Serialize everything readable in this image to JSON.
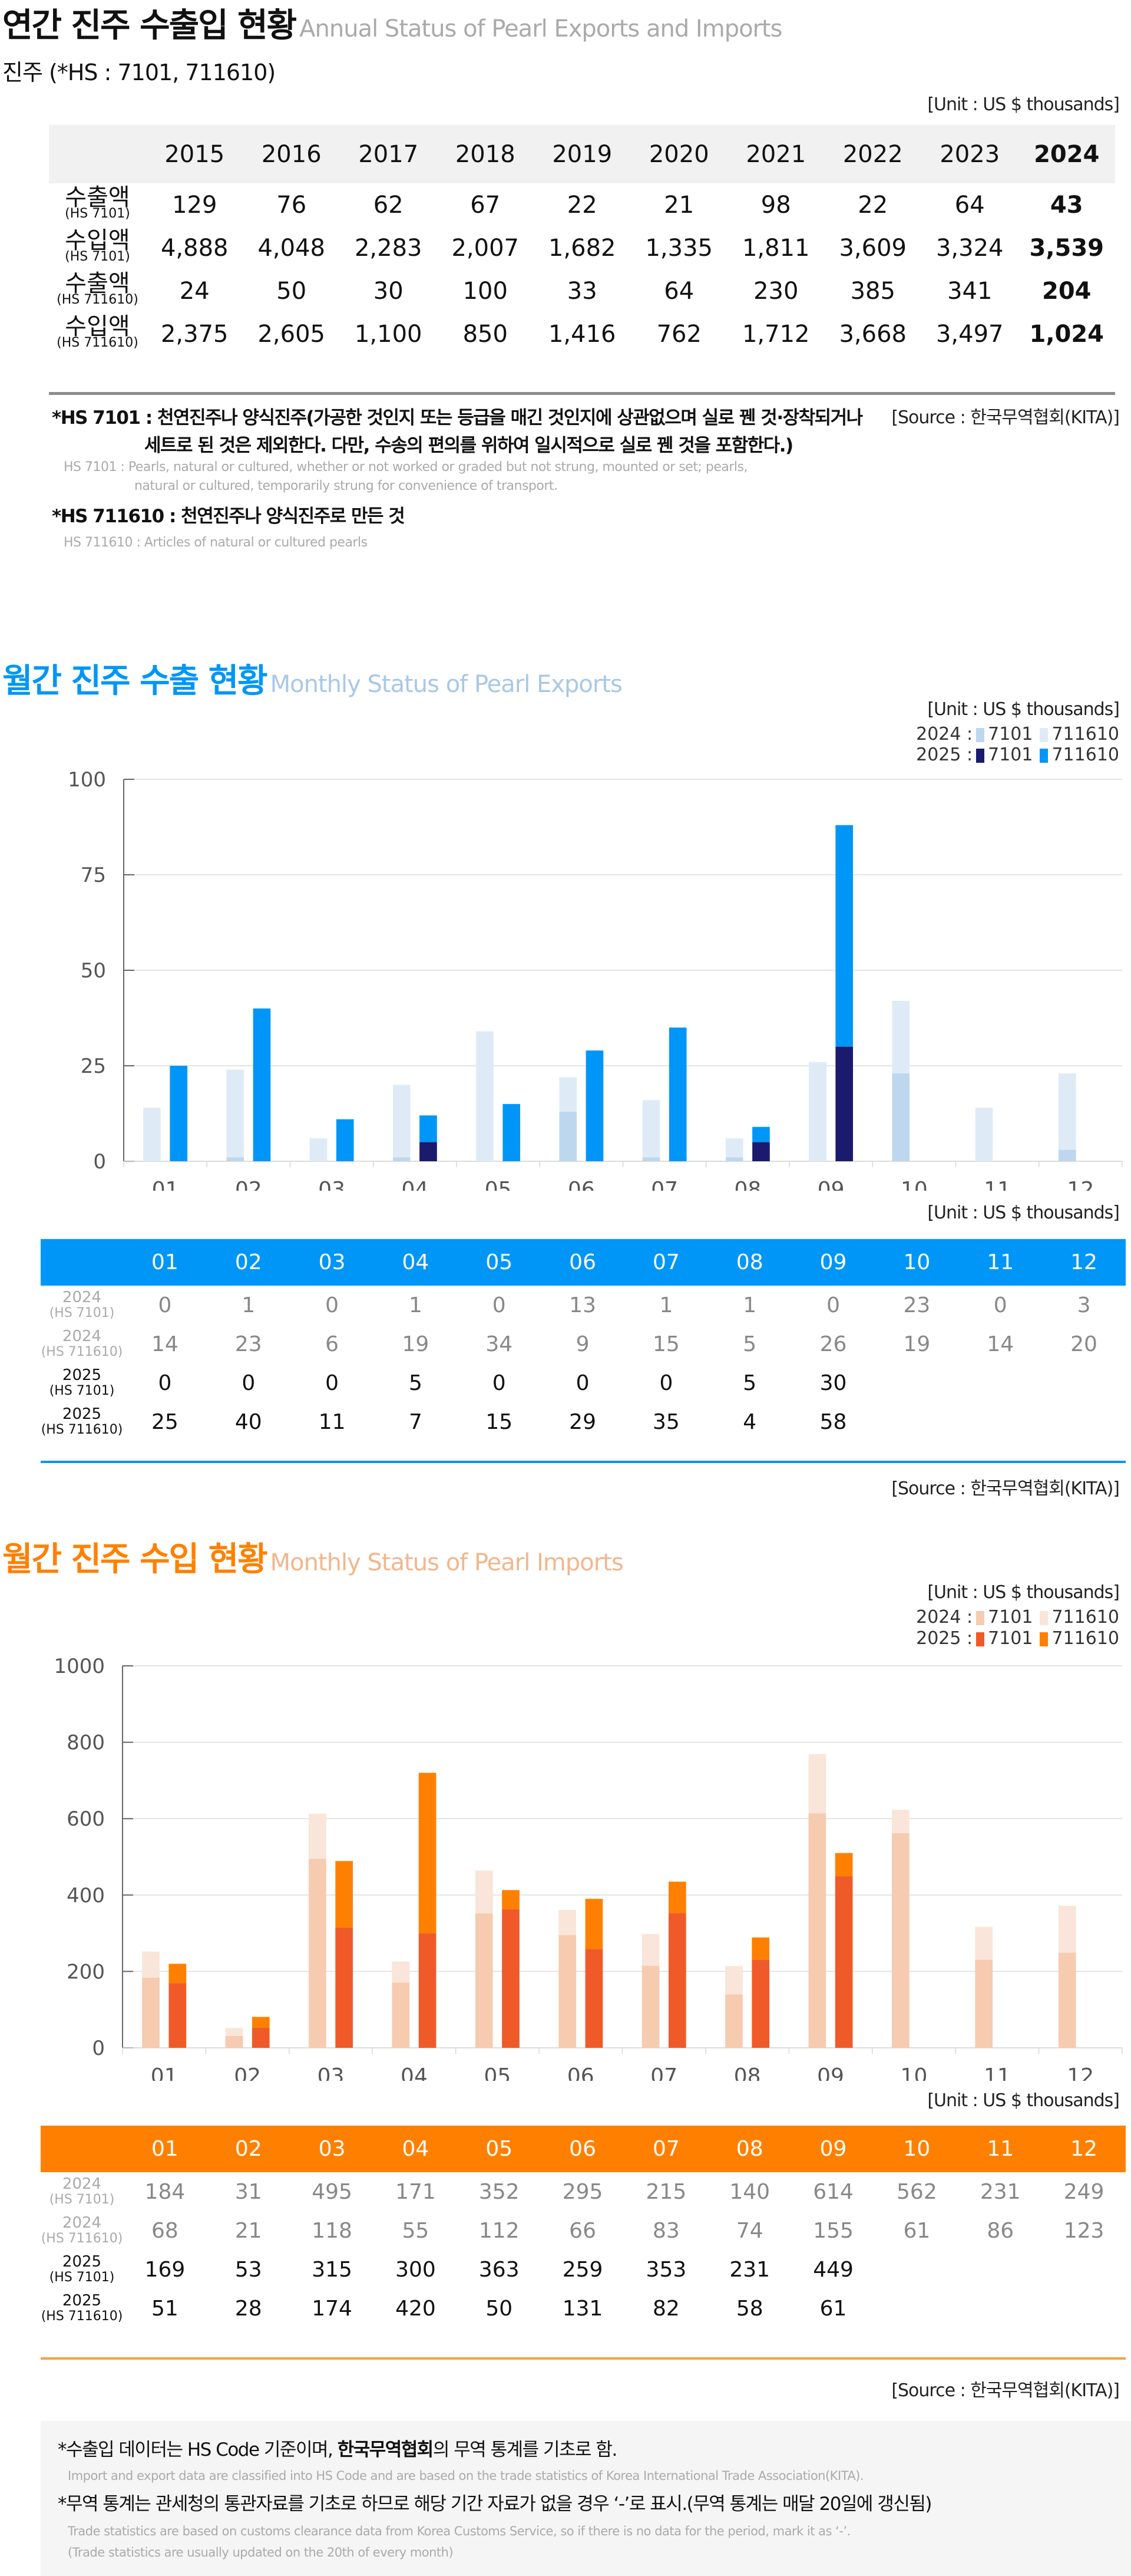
{
  "annual": {
    "title_ko": "연간 진주 수출입 현황",
    "title_en": "Annual Status of Pearl Exports and Imports",
    "subtitle": "진주 (*HS : 7101, 711610)",
    "unit": "[Unit : US $ thousands]",
    "years": [
      "2015",
      "2016",
      "2017",
      "2018",
      "2019",
      "2020",
      "2021",
      "2022",
      "2023",
      "2024"
    ],
    "rows": [
      {
        "label": "수출액",
        "code": "(HS 7101)",
        "values": [
          "129",
          "76",
          "62",
          "67",
          "22",
          "21",
          "98",
          "22",
          "64",
          "43"
        ]
      },
      {
        "label": "수입액",
        "code": "(HS 7101)",
        "values": [
          "4,888",
          "4,048",
          "2,283",
          "2,007",
          "1,682",
          "1,335",
          "1,811",
          "3,609",
          "3,324",
          "3,539"
        ]
      },
      {
        "label": "수출액",
        "code": "(HS 711610)",
        "values": [
          "24",
          "50",
          "30",
          "100",
          "33",
          "64",
          "230",
          "385",
          "341",
          "204"
        ]
      },
      {
        "label": "수입액",
        "code": "(HS 711610)",
        "values": [
          "2,375",
          "2,605",
          "1,100",
          "850",
          "1,416",
          "762",
          "1,712",
          "3,668",
          "3,497",
          "1,024"
        ]
      }
    ],
    "source": "[Source : 한국무역협회(KITA)]",
    "notes": {
      "hs7101_ko_line1": "*HS 7101 : 천연진주나 양식진주(가공한 것인지 또는 등급을 매긴 것인지에 상관없으며 실로 꿴 것·장착되거나",
      "hs7101_ko_line2": "세트로 된 것은 제외한다. 다만, 수송의 편의를 위하여 일시적으로 실로 꿴 것을 포함한다.)",
      "hs7101_en_line1": "HS 7101 : Pearls, natural or cultured, whether or not worked or graded but not strung, mounted or set; pearls,",
      "hs7101_en_line2": "natural or cultured, temporarily strung for convenience of transport.",
      "hs711610_ko": "*HS 711610 : 천연진주나 양식진주로 만든 것",
      "hs711610_en": "HS 711610 : Articles of natural or cultured pearls"
    }
  },
  "exports": {
    "title_ko": "월간 진주 수출 현황",
    "title_en": "Monthly Status of Pearl Exports",
    "unit": "[Unit : US $ thousands]",
    "legend": {
      "y2024": "2024 :",
      "y2025": "2025 :",
      "c7101": "7101",
      "c711610": "711610"
    },
    "colors": {
      "y2024_7101": "#bdd7ee",
      "y2024_711610": "#deebf7",
      "y2025_7101": "#1a1a6e",
      "y2025_711610": "#0096f7",
      "header": "#0096f7",
      "rule": "#0096f7"
    },
    "table_rows": [
      {
        "year": "2024",
        "code": "(HS 7101)",
        "values": [
          "0",
          "1",
          "0",
          "1",
          "0",
          "13",
          "1",
          "1",
          "0",
          "23",
          "0",
          "3"
        ]
      },
      {
        "year": "2024",
        "code": "(HS 711610)",
        "values": [
          "14",
          "23",
          "6",
          "19",
          "34",
          "9",
          "15",
          "5",
          "26",
          "19",
          "14",
          "20"
        ]
      },
      {
        "year": "2025",
        "code": "(HS 7101)",
        "values": [
          "0",
          "0",
          "0",
          "5",
          "0",
          "0",
          "0",
          "5",
          "30",
          "",
          "",
          ""
        ]
      },
      {
        "year": "2025",
        "code": "(HS 711610)",
        "values": [
          "25",
          "40",
          "11",
          "7",
          "15",
          "29",
          "35",
          "4",
          "58",
          "",
          "",
          ""
        ]
      }
    ],
    "source": "[Source : 한국무역협회(KITA)]"
  },
  "imports": {
    "title_ko": "월간 진주 수입 현황",
    "title_en": "Monthly Status of Pearl Imports",
    "unit": "[Unit : US $ thousands]",
    "legend": {
      "y2024": "2024 :",
      "y2025": "2025 :",
      "c7101": "7101",
      "c711610": "711610"
    },
    "colors": {
      "y2024_7101": "#f6cbb0",
      "y2024_711610": "#f9e5d9",
      "y2025_7101": "#f05a28",
      "y2025_711610": "#ff8000",
      "header": "#ff8000",
      "rule": "#f2a33a"
    },
    "table_rows": [
      {
        "year": "2024",
        "code": "(HS 7101)",
        "values": [
          "184",
          "31",
          "495",
          "171",
          "352",
          "295",
          "215",
          "140",
          "614",
          "562",
          "231",
          "249"
        ]
      },
      {
        "year": "2024",
        "code": "(HS 711610)",
        "values": [
          "68",
          "21",
          "118",
          "55",
          "112",
          "66",
          "83",
          "74",
          "155",
          "61",
          "86",
          "123"
        ]
      },
      {
        "year": "2025",
        "code": "(HS 7101)",
        "values": [
          "169",
          "53",
          "315",
          "300",
          "363",
          "259",
          "353",
          "231",
          "449",
          "",
          "",
          ""
        ]
      },
      {
        "year": "2025",
        "code": "(HS 711610)",
        "values": [
          "51",
          "28",
          "174",
          "420",
          "50",
          "131",
          "82",
          "58",
          "61",
          "",
          "",
          ""
        ]
      }
    ],
    "source": "[Source : 한국무역협회(KITA)]"
  },
  "months": [
    "01",
    "02",
    "03",
    "04",
    "05",
    "06",
    "07",
    "08",
    "09",
    "10",
    "11",
    "12"
  ],
  "footer": {
    "note1_ko_pre": "*수출입 데이터는 HS Code 기준이며, ",
    "note1_ko_bold": "한국무역협회",
    "note1_ko_post": "의 무역 통계를 기초로 함.",
    "note1_en": "Import and export data are classified into HS Code and are based on the trade statistics of Korea International  Trade Association(KITA).",
    "note2_ko": "*무역 통계는 관세청의  통관자료를 기초로 하므로 해당 기간 자료가 없을 경우 ‘-’로 표시.(무역 통계는 매달 20일에 갱신됨)",
    "note2_en_line1": "Trade statistics are based on customs clearance data from Korea Customs Service, so if there is no data for the period, mark it as ‘-’.",
    "note2_en_line2": "(Trade statistics are usually updated on the 20th of every month)"
  },
  "chart_data": [
    {
      "type": "bar",
      "title": "월간 진주 수출 현황 Monthly Status of Pearl Exports",
      "xlabel": "",
      "ylabel": "US $ thousands",
      "categories": [
        "01",
        "02",
        "03",
        "04",
        "05",
        "06",
        "07",
        "08",
        "09",
        "10",
        "11",
        "12"
      ],
      "ylim": [
        0,
        100
      ],
      "yticks": [
        0,
        25,
        50,
        75,
        100
      ],
      "grid": true,
      "legend_position": "top-right",
      "stacked_groups": [
        "2024",
        "2025"
      ],
      "series": [
        {
          "name": "2024 7101",
          "group": "2024",
          "values": [
            0,
            1,
            0,
            1,
            0,
            13,
            1,
            1,
            0,
            23,
            0,
            3
          ]
        },
        {
          "name": "2024 711610",
          "group": "2024",
          "values": [
            14,
            23,
            6,
            19,
            34,
            9,
            15,
            5,
            26,
            19,
            14,
            20
          ]
        },
        {
          "name": "2025 7101",
          "group": "2025",
          "values": [
            0,
            0,
            0,
            5,
            0,
            0,
            0,
            5,
            30,
            null,
            null,
            null
          ]
        },
        {
          "name": "2025 711610",
          "group": "2025",
          "values": [
            25,
            40,
            11,
            7,
            15,
            29,
            35,
            4,
            58,
            null,
            null,
            null
          ]
        }
      ]
    },
    {
      "type": "bar",
      "title": "월간 진주 수입 현황 Monthly Status of Pearl Imports",
      "xlabel": "",
      "ylabel": "US $ thousands",
      "categories": [
        "01",
        "02",
        "03",
        "04",
        "05",
        "06",
        "07",
        "08",
        "09",
        "10",
        "11",
        "12"
      ],
      "ylim": [
        0,
        1000
      ],
      "yticks": [
        0,
        200,
        400,
        600,
        800,
        1000
      ],
      "grid": true,
      "legend_position": "top-right",
      "stacked_groups": [
        "2024",
        "2025"
      ],
      "series": [
        {
          "name": "2024 7101",
          "group": "2024",
          "values": [
            184,
            31,
            495,
            171,
            352,
            295,
            215,
            140,
            614,
            562,
            231,
            249
          ]
        },
        {
          "name": "2024 711610",
          "group": "2024",
          "values": [
            68,
            21,
            118,
            55,
            112,
            66,
            83,
            74,
            155,
            61,
            86,
            123
          ]
        },
        {
          "name": "2025 7101",
          "group": "2025",
          "values": [
            169,
            53,
            315,
            300,
            363,
            259,
            353,
            231,
            449,
            null,
            null,
            null
          ]
        },
        {
          "name": "2025 711610",
          "group": "2025",
          "values": [
            51,
            28,
            174,
            420,
            50,
            131,
            82,
            58,
            61,
            null,
            null,
            null
          ]
        }
      ]
    }
  ]
}
